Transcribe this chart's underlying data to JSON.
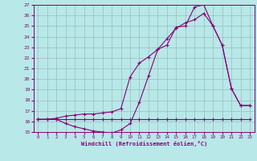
{
  "xlabel": "Windchill (Refroidissement éolien,°C)",
  "xlim": [
    -0.5,
    23.5
  ],
  "ylim": [
    15,
    27
  ],
  "xticks": [
    0,
    1,
    2,
    3,
    4,
    5,
    6,
    7,
    8,
    9,
    10,
    11,
    12,
    13,
    14,
    15,
    16,
    17,
    18,
    19,
    20,
    21,
    22,
    23
  ],
  "yticks": [
    15,
    16,
    17,
    18,
    19,
    20,
    21,
    22,
    23,
    24,
    25,
    26,
    27
  ],
  "bg_color": "#b8e8e8",
  "grid_color": "#9bbcbc",
  "line_color": "#880077",
  "line1_x": [
    0,
    1,
    2,
    3,
    4,
    5,
    6,
    7,
    8,
    9,
    10,
    11,
    12,
    13,
    14,
    15,
    16,
    17,
    18,
    19,
    20,
    21,
    22,
    23
  ],
  "line1_y": [
    16.2,
    16.2,
    16.2,
    16.2,
    16.2,
    16.2,
    16.2,
    16.2,
    16.2,
    16.2,
    16.2,
    16.2,
    16.2,
    16.2,
    16.2,
    16.2,
    16.2,
    16.2,
    16.2,
    16.2,
    16.2,
    16.2,
    16.2,
    16.2
  ],
  "line2_x": [
    0,
    1,
    2,
    3,
    4,
    5,
    6,
    7,
    8,
    9,
    10,
    11,
    12,
    13,
    14,
    15,
    16,
    17,
    18,
    19,
    20,
    21,
    22,
    23
  ],
  "line2_y": [
    16.2,
    16.2,
    16.2,
    15.8,
    15.5,
    15.3,
    15.1,
    15.0,
    14.9,
    15.2,
    15.8,
    17.8,
    20.3,
    22.8,
    23.2,
    24.9,
    25.0,
    26.8,
    27.0,
    25.0,
    23.2,
    19.1,
    17.5,
    17.5
  ],
  "line3_x": [
    0,
    1,
    2,
    3,
    4,
    5,
    6,
    7,
    8,
    9,
    10,
    11,
    12,
    13,
    14,
    15,
    16,
    17,
    18,
    19,
    20,
    21,
    22,
    23
  ],
  "line3_y": [
    16.2,
    16.2,
    16.3,
    16.5,
    16.6,
    16.7,
    16.7,
    16.8,
    16.9,
    17.2,
    20.2,
    21.5,
    22.1,
    22.8,
    23.8,
    24.8,
    25.3,
    25.6,
    26.2,
    25.0,
    23.2,
    19.1,
    17.5,
    17.5
  ]
}
